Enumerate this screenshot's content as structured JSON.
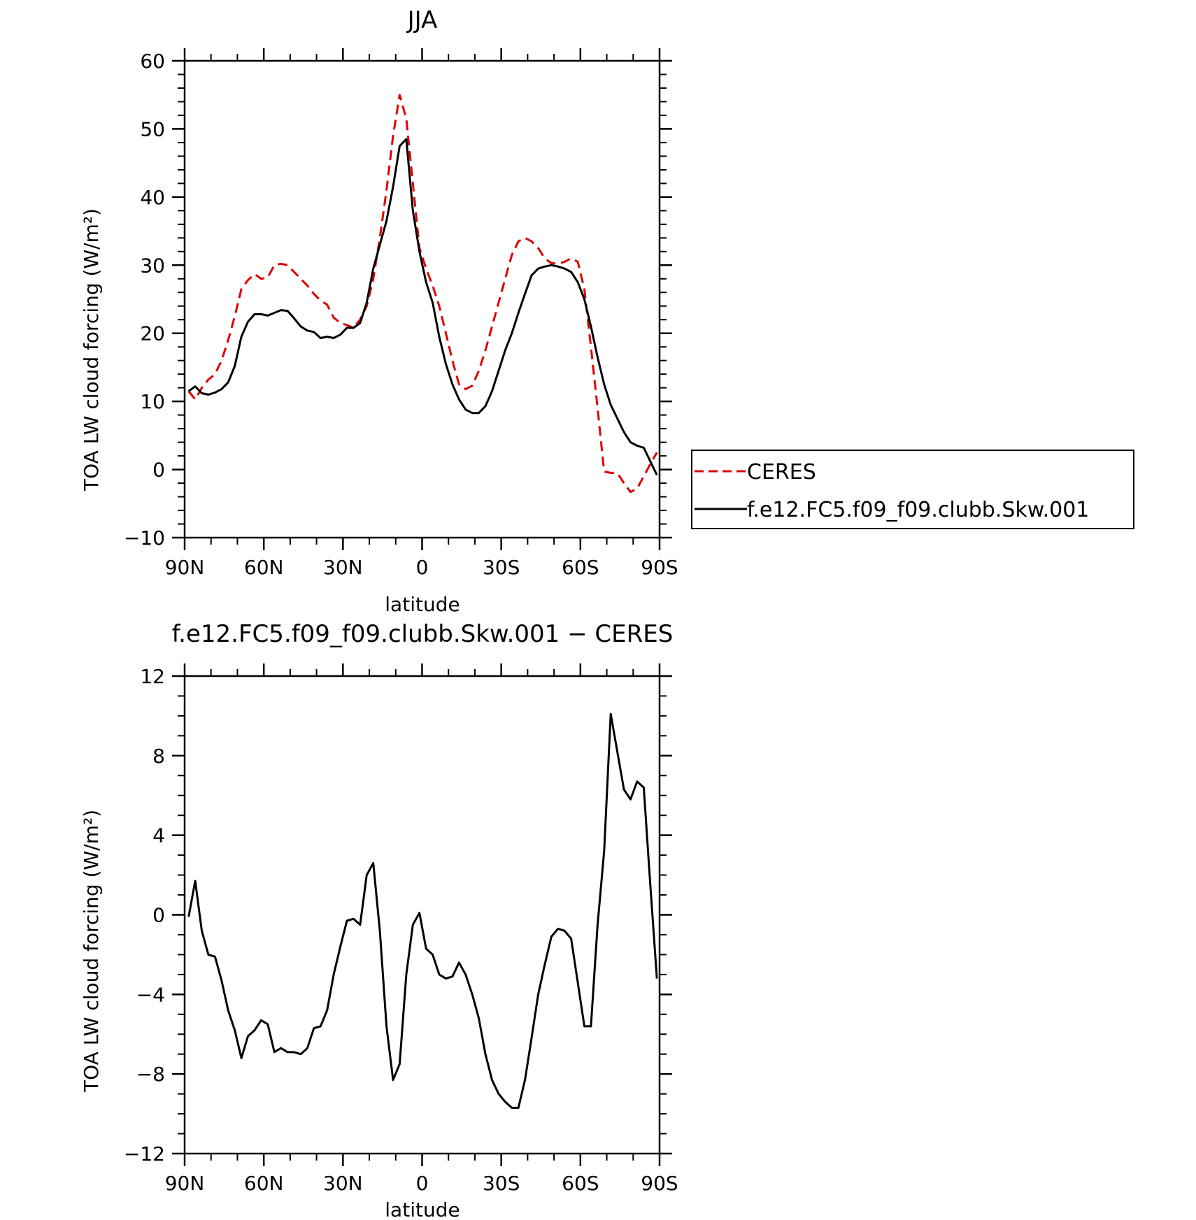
{
  "colors": {
    "ceres": "#e00000",
    "model": "#000000",
    "axes": "#000000"
  },
  "chart_data": [
    {
      "type": "line",
      "title": "JJA",
      "xlabel": "latitude",
      "ylabel": "TOA LW cloud forcing (W/m²)",
      "xlim": [
        90,
        -90
      ],
      "ylim": [
        -10,
        60
      ],
      "x_ticks": [
        {
          "value": 90,
          "label": "90N"
        },
        {
          "value": 60,
          "label": "60N"
        },
        {
          "value": 30,
          "label": "30N"
        },
        {
          "value": 0,
          "label": "0"
        },
        {
          "value": -30,
          "label": "30S"
        },
        {
          "value": -60,
          "label": "60S"
        },
        {
          "value": -90,
          "label": "90S"
        }
      ],
      "y_ticks": [
        {
          "value": 60,
          "label": "60"
        },
        {
          "value": 50,
          "label": "50"
        },
        {
          "value": 40,
          "label": "40"
        },
        {
          "value": 30,
          "label": "30"
        },
        {
          "value": 20,
          "label": "20"
        },
        {
          "value": 10,
          "label": "10"
        },
        {
          "value": 0,
          "label": "0"
        },
        {
          "value": -10,
          "label": "−10"
        }
      ],
      "legend": {
        "placement": "right",
        "entries": [
          {
            "name": "CERES",
            "style": "dashed",
            "color": "#e00000"
          },
          {
            "name": "f.e12.FC5.f09_f09.clubb.Skw.001",
            "style": "solid",
            "color": "#000000"
          }
        ]
      },
      "series": [
        {
          "name": "CERES",
          "style": "dashed",
          "color": "#e00000",
          "x": [
            88.5,
            86,
            83.5,
            81,
            78.5,
            76,
            73.5,
            71,
            68.5,
            66,
            63.5,
            61,
            58.5,
            56,
            53.5,
            51,
            48.5,
            46,
            43.5,
            41,
            38.5,
            36,
            33.5,
            31,
            28.5,
            26,
            23.5,
            21,
            18.5,
            16,
            13.5,
            11,
            8.5,
            6,
            3.5,
            1,
            -1.5,
            -4,
            -6.5,
            -9,
            -11.5,
            -14,
            -16.5,
            -19,
            -21.5,
            -24,
            -26.5,
            -29,
            -31.5,
            -34,
            -36.5,
            -39,
            -41.5,
            -44,
            -46.5,
            -49,
            -51.5,
            -54,
            -56.5,
            -59,
            -61.5,
            -64,
            -66.5,
            -69,
            -71.5,
            -74,
            -76.5,
            -79,
            -81.5,
            -84,
            -86.5,
            -89
          ],
          "values": [
            11.5,
            10.3,
            12.0,
            13.2,
            14.0,
            16.0,
            19.0,
            22.5,
            26.5,
            27.8,
            28.7,
            28.0,
            28.2,
            30.0,
            30.2,
            30.0,
            29.0,
            28.0,
            27.0,
            25.8,
            24.8,
            24.2,
            22.3,
            21.5,
            21.2,
            20.8,
            22.0,
            24.0,
            28.0,
            34.0,
            41.0,
            49.0,
            55.0,
            51.5,
            42.0,
            32.5,
            29.5,
            27.0,
            24.0,
            20.0,
            16.0,
            12.5,
            11.8,
            12.3,
            14.5,
            17.5,
            21.0,
            24.5,
            28.0,
            31.5,
            33.5,
            34.0,
            33.5,
            32.5,
            31.0,
            30.3,
            30.2,
            30.5,
            31.0,
            30.5,
            26.5,
            18.0,
            9.0,
            -0.3,
            -0.5,
            -0.5,
            -2.0,
            -3.3,
            -2.8,
            -1.0,
            0.8,
            2.5
          ]
        },
        {
          "name": "f.e12.FC5.f09_f09.clubb.Skw.001",
          "style": "solid",
          "color": "#000000",
          "x": [
            88.5,
            86,
            83.5,
            81,
            78.5,
            76,
            73.5,
            71,
            68.5,
            66,
            63.5,
            61,
            58.5,
            56,
            53.5,
            51,
            48.5,
            46,
            43.5,
            41,
            38.5,
            36,
            33.5,
            31,
            28.5,
            26,
            23.5,
            21,
            18.5,
            16,
            13.5,
            11,
            8.5,
            6,
            3.5,
            1,
            -1.5,
            -4,
            -6.5,
            -9,
            -11.5,
            -14,
            -16.5,
            -19,
            -21.5,
            -24,
            -26.5,
            -29,
            -31.5,
            -34,
            -36.5,
            -39,
            -41.5,
            -44,
            -46.5,
            -49,
            -51.5,
            -54,
            -56.5,
            -59,
            -61.5,
            -64,
            -66.5,
            -69,
            -71.5,
            -74,
            -76.5,
            -79,
            -81.5,
            -84,
            -86.5,
            -89
          ],
          "values": [
            11.5,
            12.2,
            11.2,
            11.0,
            11.3,
            11.8,
            12.8,
            15.2,
            19.5,
            21.7,
            22.8,
            22.8,
            22.6,
            23.0,
            23.4,
            23.3,
            22.2,
            21.0,
            20.4,
            20.2,
            19.3,
            19.5,
            19.3,
            19.8,
            20.8,
            20.8,
            21.5,
            24.5,
            29.5,
            33.0,
            36.5,
            41.5,
            47.5,
            48.5,
            38.0,
            32.0,
            27.5,
            24.5,
            19.5,
            15.5,
            12.5,
            10.3,
            8.8,
            8.3,
            8.3,
            9.3,
            11.5,
            14.5,
            17.5,
            20.0,
            23.0,
            25.8,
            28.5,
            29.5,
            29.8,
            30.0,
            29.8,
            29.5,
            29.0,
            27.5,
            25.0,
            21.0,
            16.5,
            12.5,
            9.5,
            7.5,
            5.5,
            4.0,
            3.5,
            3.2,
            1.2,
            -0.8
          ]
        }
      ]
    },
    {
      "type": "line",
      "title": "f.e12.FC5.f09_f09.clubb.Skw.001 − CERES",
      "xlabel": "latitude",
      "ylabel": "TOA LW cloud forcing (W/m²)",
      "xlim": [
        90,
        -90
      ],
      "ylim": [
        -12,
        12
      ],
      "x_ticks": [
        {
          "value": 90,
          "label": "90N"
        },
        {
          "value": 60,
          "label": "60N"
        },
        {
          "value": 30,
          "label": "30N"
        },
        {
          "value": 0,
          "label": "0"
        },
        {
          "value": -30,
          "label": "30S"
        },
        {
          "value": -60,
          "label": "60S"
        },
        {
          "value": -90,
          "label": "90S"
        }
      ],
      "y_ticks": [
        {
          "value": 12,
          "label": "12"
        },
        {
          "value": 8,
          "label": "8"
        },
        {
          "value": 4,
          "label": "4"
        },
        {
          "value": 0,
          "label": "0"
        },
        {
          "value": -4,
          "label": "−4"
        },
        {
          "value": -8,
          "label": "−8"
        },
        {
          "value": -12,
          "label": "−12"
        }
      ],
      "series": [
        {
          "style": "solid",
          "color": "#000000",
          "x": [
            88.5,
            86,
            83.5,
            81,
            78.5,
            76,
            73.5,
            71,
            68.5,
            66,
            63.5,
            61,
            58.5,
            56,
            53.5,
            51,
            48.5,
            46,
            43.5,
            41,
            38.5,
            36,
            33.5,
            31,
            28.5,
            26,
            23.5,
            21,
            18.5,
            16,
            13.5,
            11,
            8.5,
            6,
            3.5,
            1,
            -1.5,
            -4,
            -6.5,
            -9,
            -11.5,
            -14,
            -16.5,
            -19,
            -21.5,
            -24,
            -26.5,
            -29,
            -31.5,
            -34,
            -36.5,
            -39,
            -41.5,
            -44,
            -46.5,
            -49,
            -51.5,
            -54,
            -56.5,
            -59,
            -61.5,
            -64,
            -66.5,
            -69,
            -71.5,
            -74,
            -76.5,
            -79,
            -81.5,
            -84,
            -86.5,
            -89
          ],
          "values": [
            -0.1,
            1.7,
            -0.8,
            -2.0,
            -2.1,
            -3.3,
            -4.8,
            -5.8,
            -7.2,
            -6.1,
            -5.8,
            -5.3,
            -5.5,
            -6.9,
            -6.7,
            -6.9,
            -6.9,
            -7.0,
            -6.7,
            -5.7,
            -5.6,
            -4.8,
            -3.0,
            -1.6,
            -0.3,
            -0.2,
            -0.5,
            2.0,
            2.6,
            -0.8,
            -5.6,
            -8.3,
            -7.5,
            -3.0,
            -0.5,
            0.1,
            -1.7,
            -2.0,
            -3.0,
            -3.2,
            -3.1,
            -2.4,
            -3.0,
            -4.0,
            -5.2,
            -7.0,
            -8.3,
            -9.0,
            -9.4,
            -9.7,
            -9.7,
            -8.3,
            -6.2,
            -4.0,
            -2.5,
            -1.1,
            -0.7,
            -0.8,
            -1.2,
            -3.4,
            -5.6,
            -5.6,
            -0.5,
            3.2,
            10.1,
            8.2,
            6.3,
            5.8,
            6.7,
            6.4,
            1.5,
            -3.2
          ]
        }
      ]
    }
  ]
}
